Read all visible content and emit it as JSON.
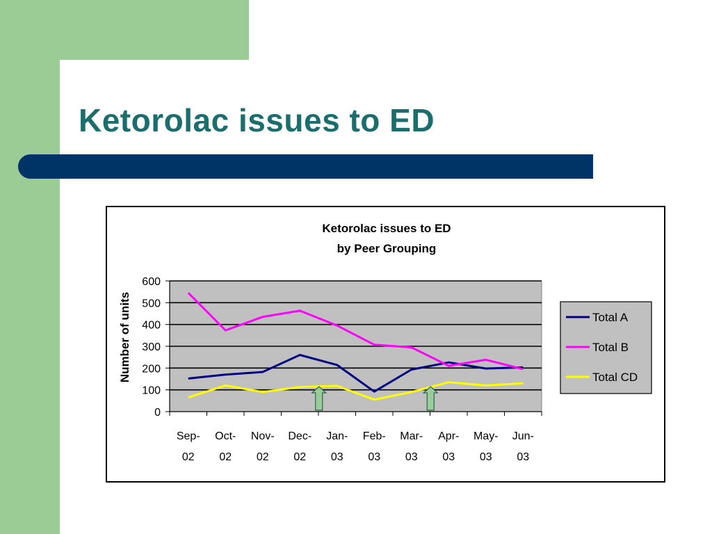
{
  "slide": {
    "title": "Ketorolac issues to ED",
    "colors": {
      "accent_green": "#9ccc95",
      "title_teal": "#1b6e6c",
      "bar_navy": "#003366"
    }
  },
  "chart_data": {
    "type": "line",
    "title": "Ketorolac issues to ED",
    "subtitle": "by Peer Grouping",
    "ylabel": "Number of units",
    "xlabel": "",
    "categories": [
      "Sep-02",
      "Oct-02",
      "Nov-02",
      "Dec-02",
      "Jan-03",
      "Feb-03",
      "Mar-03",
      "Apr-03",
      "May-03",
      "Jun-03"
    ],
    "category_lines": [
      [
        "Sep-",
        "02"
      ],
      [
        "Oct-",
        "02"
      ],
      [
        "Nov-",
        "02"
      ],
      [
        "Dec-",
        "02"
      ],
      [
        "Jan-",
        "03"
      ],
      [
        "Feb-",
        "03"
      ],
      [
        "Mar-",
        "03"
      ],
      [
        "Apr-",
        "03"
      ],
      [
        "May-",
        "03"
      ],
      [
        "Jun-",
        "03"
      ]
    ],
    "ylim": [
      0,
      600
    ],
    "yticks": [
      0,
      100,
      200,
      300,
      400,
      500,
      600
    ],
    "grid": true,
    "plot_background": "#c0c0c0",
    "legend_position": "right",
    "series": [
      {
        "name": "Total A",
        "color": "#000080",
        "values": [
          152,
          170,
          182,
          260,
          214,
          92,
          193,
          226,
          198,
          203
        ]
      },
      {
        "name": "Total B",
        "color": "#ff00ff",
        "values": [
          545,
          373,
          435,
          463,
          395,
          307,
          295,
          210,
          238,
          195
        ]
      },
      {
        "name": "Total CD",
        "color": "#ffff00",
        "values": [
          65,
          120,
          90,
          113,
          118,
          55,
          90,
          135,
          120,
          130
        ]
      }
    ],
    "annotations": [
      {
        "type": "up-arrow",
        "category": "Jan-03",
        "color": "#99cc99"
      },
      {
        "type": "up-arrow",
        "category": "Apr-03",
        "color": "#99cc99"
      }
    ]
  }
}
